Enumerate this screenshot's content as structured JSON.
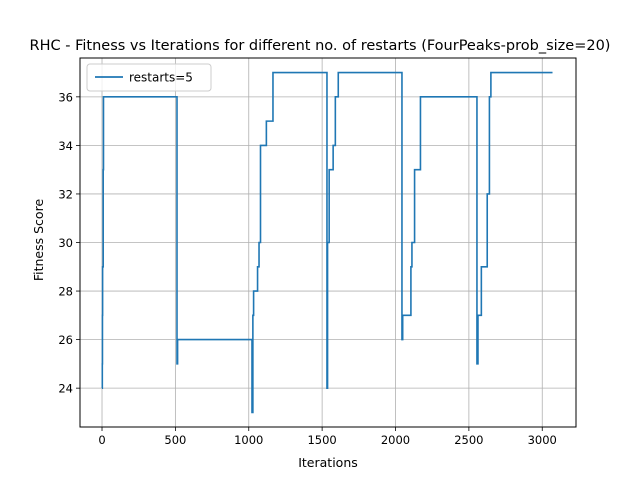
{
  "chart_data": {
    "type": "line",
    "title": "RHC - Fitness vs Iterations for different no. of restarts (FourPeaks-prob_size=20)",
    "xlabel": "Iterations",
    "ylabel": "Fitness Score",
    "xlim": [
      -150,
      3230
    ],
    "ylim": [
      22.4,
      37.6
    ],
    "xticks": [
      0,
      500,
      1000,
      1500,
      2000,
      2500,
      3000
    ],
    "yticks": [
      24,
      26,
      28,
      30,
      32,
      34,
      36
    ],
    "grid": true,
    "legend_position": "top-left",
    "series": [
      {
        "name": "restarts=5",
        "color": "#1f77b4",
        "step_points": [
          [
            0,
            24
          ],
          [
            2,
            25
          ],
          [
            3,
            27
          ],
          [
            4,
            29
          ],
          [
            8,
            33
          ],
          [
            10,
            36
          ],
          [
            511,
            25
          ],
          [
            515,
            26
          ],
          [
            1022,
            23
          ],
          [
            1028,
            27
          ],
          [
            1033,
            28
          ],
          [
            1060,
            29
          ],
          [
            1070,
            30
          ],
          [
            1080,
            34
          ],
          [
            1120,
            35
          ],
          [
            1165,
            37
          ],
          [
            1533,
            24
          ],
          [
            1537,
            30
          ],
          [
            1548,
            33
          ],
          [
            1575,
            34
          ],
          [
            1590,
            36
          ],
          [
            1610,
            37
          ],
          [
            2044,
            26
          ],
          [
            2049,
            27
          ],
          [
            2105,
            29
          ],
          [
            2112,
            30
          ],
          [
            2130,
            33
          ],
          [
            2170,
            36
          ],
          [
            2555,
            25
          ],
          [
            2562,
            27
          ],
          [
            2585,
            29
          ],
          [
            2625,
            32
          ],
          [
            2640,
            36
          ],
          [
            2650,
            37
          ],
          [
            3070,
            37
          ]
        ]
      }
    ]
  }
}
